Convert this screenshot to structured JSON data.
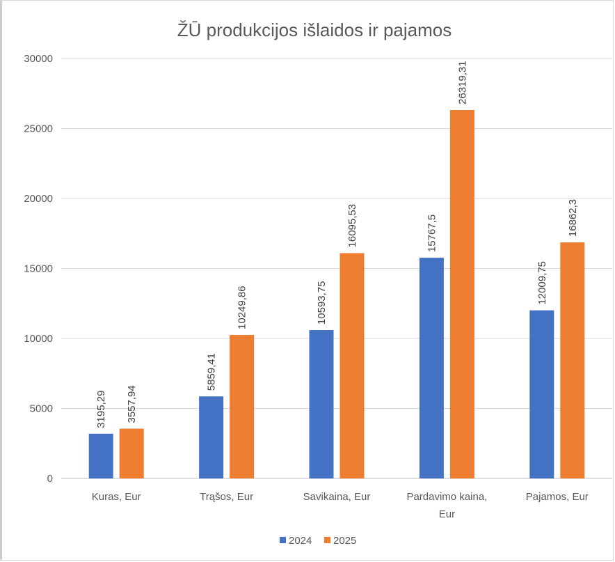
{
  "chart_data": {
    "type": "bar",
    "title": "ŽŪ produkcijos išlaidos ir pajamos",
    "categories": [
      [
        "Kuras, Eur"
      ],
      [
        "Trąšos, Eur"
      ],
      [
        "Savikaina, Eur"
      ],
      [
        "Pardavimo kaina,",
        "Eur"
      ],
      [
        "Pajamos, Eur"
      ]
    ],
    "series": [
      {
        "name": "2024",
        "color": "#4472c4",
        "values": [
          3195.29,
          5859.41,
          10593.75,
          15767.5,
          12009.75
        ],
        "labels": [
          "3195,29",
          "5859,41",
          "10593,75",
          "15767,5",
          "12009,75"
        ]
      },
      {
        "name": "2025",
        "color": "#ed7d31",
        "values": [
          3557.94,
          10249.86,
          16095.53,
          26319.31,
          16862.3
        ],
        "labels": [
          "3557,94",
          "10249,86",
          "16095,53",
          "26319,31",
          "16862,3"
        ]
      }
    ],
    "ylim": [
      0,
      30000
    ],
    "yticks": [
      0,
      5000,
      10000,
      15000,
      20000,
      25000,
      30000
    ],
    "grid": true,
    "legend": "bottom",
    "xlabel": "",
    "ylabel": ""
  }
}
